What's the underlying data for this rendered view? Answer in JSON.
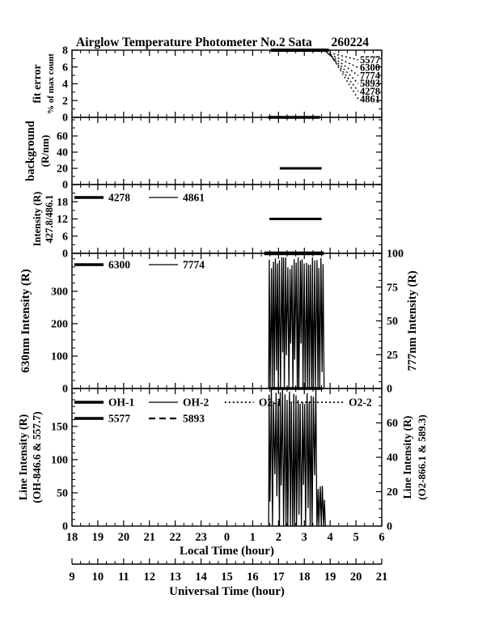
{
  "page": {
    "bg": "#ffffff",
    "ink": "#000000"
  },
  "header": {
    "title": "Airglow Temperature Photometer No.2  Sata",
    "date": "260224"
  },
  "x_axis": {
    "hours_span": 12,
    "minor_per_hour": 3,
    "local": {
      "title": "Local Time (hour)",
      "labels": [
        "18",
        "19",
        "20",
        "21",
        "22",
        "23",
        "0",
        "1",
        "2",
        "3",
        "4",
        "5",
        "6"
      ]
    },
    "universal": {
      "title": "Universal Time (hour)",
      "labels": [
        "9",
        "10",
        "11",
        "12",
        "13",
        "14",
        "15",
        "16",
        "17",
        "18",
        "19",
        "20",
        "21"
      ]
    }
  },
  "chart_data": [
    {
      "id": "fit-error",
      "type": "line",
      "ylabel": "fit error",
      "ylabel2": "% of max count",
      "ylim": [
        0,
        8
      ],
      "yticks": [
        0,
        2,
        4,
        6,
        8
      ],
      "yminor": 1,
      "series": [
        {
          "name": "saturated-top-bar",
          "kind": "hbar",
          "y": 8,
          "t0": 7.7,
          "t1": 9.95,
          "lw": 4
        },
        {
          "name": "zero-level-bar",
          "kind": "hbar",
          "y": 0,
          "t0": 7.6,
          "t1": 9.6,
          "lw": 3.5
        }
      ],
      "fan": {
        "origin_t": 9.95,
        "labels": [
          "5577",
          "6300",
          "7774",
          "5893",
          "4278",
          "4861"
        ]
      }
    },
    {
      "id": "background",
      "type": "line",
      "ylabel": "background",
      "ylabel2": "(R/nm)",
      "ylim": [
        0,
        83
      ],
      "yticks": [
        0,
        20,
        40,
        60
      ],
      "yminor": 10,
      "series": [
        {
          "name": "background-level",
          "kind": "hbar",
          "y": 20,
          "t0": 8.05,
          "t1": 9.67,
          "lw": 3
        }
      ]
    },
    {
      "id": "intensity-427-486",
      "type": "line",
      "ylabel": "Intensity (R)",
      "ylabel2": "427.8/486.1",
      "ylim": [
        0,
        24
      ],
      "yticks": [
        0,
        6,
        12,
        18
      ],
      "yminor": 3,
      "legend": [
        [
          {
            "style": "thick",
            "label": "4278"
          },
          {
            "style": "thin",
            "label": "4861"
          }
        ]
      ],
      "series": [
        {
          "name": "level-12",
          "kind": "hbar",
          "y": 12,
          "t0": 7.65,
          "t1": 9.67,
          "lw": 3
        },
        {
          "name": "zero-level-bar",
          "kind": "hbar",
          "y": 0,
          "t0": 7.45,
          "t1": 9.75,
          "lw": 4.5
        }
      ]
    },
    {
      "id": "630nm-intensity",
      "type": "line",
      "ylabel": "630nm Intensity (R)",
      "ylim": [
        0,
        417
      ],
      "yticks": [
        0,
        100,
        200,
        300
      ],
      "yminor": 25,
      "right": {
        "label": "777nm Intensity (R)",
        "ylim": [
          0,
          100
        ],
        "yticks": [
          0,
          25,
          50,
          75,
          100
        ],
        "yminor": 5
      },
      "legend": [
        [
          {
            "style": "thick",
            "label": "6300"
          },
          {
            "style": "thin",
            "label": "7774"
          }
        ]
      ],
      "series": [
        {
          "name": "airglow-oscillation",
          "kind": "noise",
          "t0": 7.62,
          "t1": 9.78,
          "cycles": 27,
          "seed": 11,
          "tail": false
        },
        {
          "name": "saturated-top-bar",
          "kind": "hbar",
          "y": 417,
          "t0": 7.72,
          "t1": 9.7,
          "lw": 4
        },
        {
          "name": "zero-level-bar",
          "kind": "hbar",
          "y": 0,
          "t0": 7.7,
          "t1": 9.7,
          "lw": 3.5
        }
      ]
    },
    {
      "id": "line-intensity",
      "type": "line",
      "ylabel": "Line Intensity (R)",
      "ylabel2": "(OH-846.6 & 557.7)",
      "ylim": [
        0,
        207
      ],
      "yticks": [
        0,
        50,
        100,
        150
      ],
      "yminor": 10,
      "right": {
        "label": "Line Intensity (R)",
        "label2": "(O2-866.1 & 589.3)",
        "ylim": [
          0,
          80
        ],
        "yticks": [
          0,
          20,
          40,
          60
        ],
        "yminor": 5
      },
      "legend": [
        [
          {
            "style": "thick",
            "label": "OH-1"
          },
          {
            "style": "thin",
            "label": "OH-2"
          },
          {
            "style": "dotted",
            "label": "O2-1",
            "fx": 0.493,
            "llen": 36
          },
          {
            "style": "dotted",
            "label": "O2-2",
            "fx": 0.7,
            "llen": 68
          }
        ],
        [
          {
            "style": "thick",
            "label": "5577"
          },
          {
            "style": "dashed",
            "label": "5893"
          }
        ]
      ],
      "series": [
        {
          "name": "line-oscillation",
          "kind": "noise",
          "t0": 7.62,
          "t1": 9.85,
          "cycles": 26,
          "seed": 23,
          "tail": true
        }
      ]
    }
  ]
}
